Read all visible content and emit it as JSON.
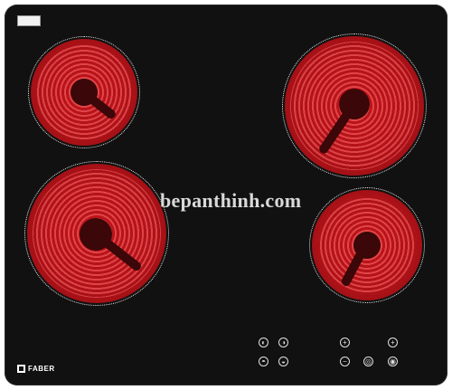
{
  "spec_label": "SPEC LABEL",
  "watermark": "bepanthinh.com",
  "brand": "FABER",
  "controls": {
    "zone_tl": "◐",
    "zone_tr": "◑",
    "zone_bl": "◓",
    "zone_br": "◒",
    "plus": "+",
    "minus": "−",
    "timer_plus": "+",
    "lock": "◎",
    "power": "◉"
  },
  "colors": {
    "glass": "#111111",
    "heat": "#c0141b",
    "rim": "#e8e8e8"
  }
}
